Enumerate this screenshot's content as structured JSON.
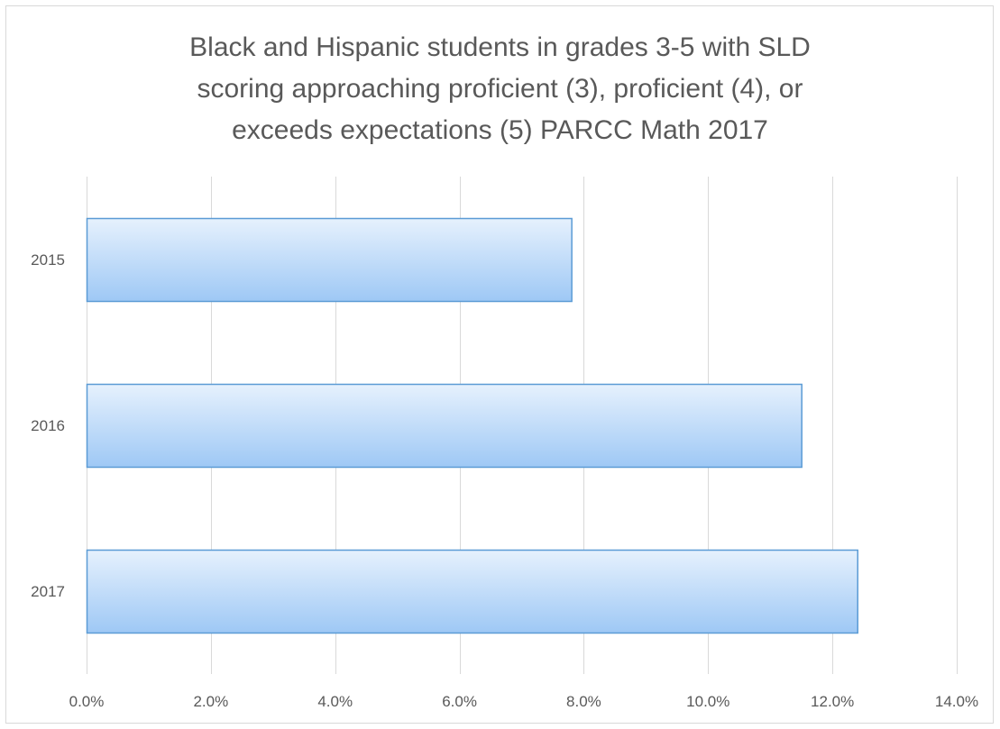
{
  "chart_data": {
    "type": "bar",
    "orientation": "horizontal",
    "title_lines": [
      "Black and Hispanic students in grades 3-5 with SLD",
      "scoring approaching proficient  (3), proficient  (4), or",
      "exceeds  expectations  (5) PARCC Math  2017"
    ],
    "categories": [
      "2015",
      "2016",
      "2017"
    ],
    "values": [
      0.078,
      0.115,
      0.124
    ],
    "xlim": [
      0,
      0.14
    ],
    "x_ticks": [
      0,
      0.02,
      0.04,
      0.06,
      0.08,
      0.1,
      0.12,
      0.14
    ],
    "x_tick_labels": [
      "0.0%",
      "2.0%",
      "4.0%",
      "6.0%",
      "8.0%",
      "10.0%",
      "12.0%",
      "14.0%"
    ],
    "xlabel": "",
    "ylabel": "",
    "grid": "vertical",
    "legend": "none",
    "colors": {
      "bar_top": "#e6f1fd",
      "bar_bottom": "#9ec8f5",
      "bar_border": "#5b9bd5",
      "grid": "#d9d9d9",
      "text": "#595959"
    }
  }
}
